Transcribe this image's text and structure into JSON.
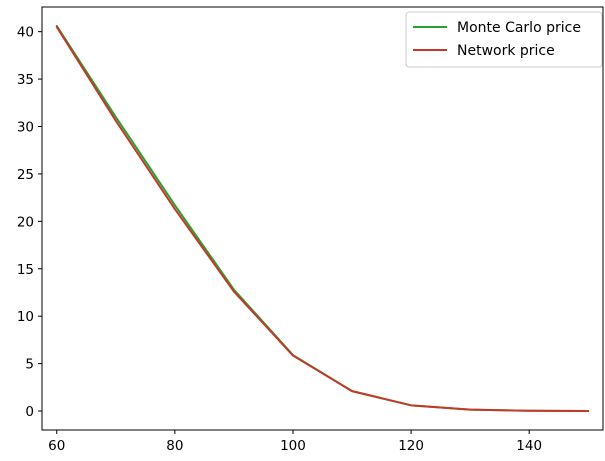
{
  "chart_data": {
    "type": "line",
    "title": "",
    "xlabel": "",
    "ylabel": "",
    "x": [
      60,
      70,
      80,
      90,
      100,
      110,
      120,
      130,
      140,
      150
    ],
    "series": [
      {
        "name": "Monte Carlo price",
        "color": "#2ca02c",
        "values": [
          40.6,
          31.0,
          21.7,
          12.8,
          5.9,
          2.1,
          0.6,
          0.15,
          0.03,
          0.0
        ]
      },
      {
        "name": "Network price",
        "color": "#c0392b",
        "values": [
          40.5,
          30.6,
          21.3,
          12.6,
          5.85,
          2.1,
          0.6,
          0.15,
          0.03,
          0.0
        ]
      }
    ],
    "xlim": [
      57.5,
      152.5
    ],
    "ylim": [
      -2.0,
      42.6
    ],
    "x_ticks": [
      "60",
      "80",
      "100",
      "120",
      "140"
    ],
    "y_ticks": [
      "0",
      "5",
      "10",
      "15",
      "20",
      "25",
      "30",
      "35",
      "40"
    ],
    "grid": false,
    "legend_position": "top-right"
  }
}
